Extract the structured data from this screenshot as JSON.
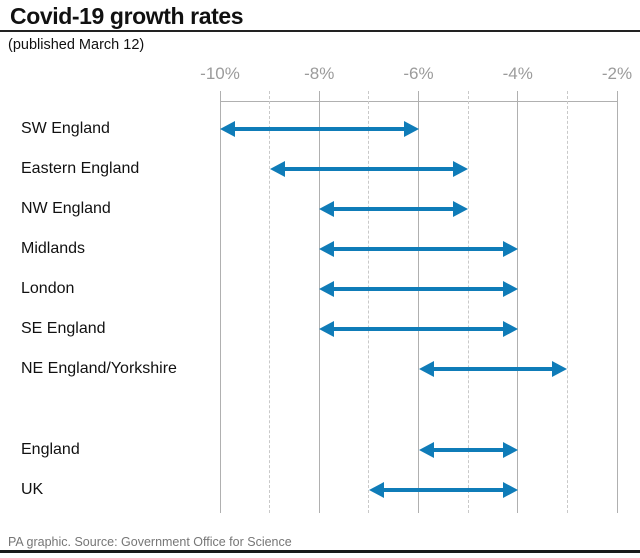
{
  "header": {
    "title": "Covid-19 growth rates",
    "subtitle": "(published March 12)"
  },
  "footer": {
    "text": "PA graphic. Source: Government Office for Science"
  },
  "colors": {
    "arrow": "#0f7cb8",
    "grid_solid": "#b0b0b0",
    "grid_dashed": "#c9c9c9",
    "axis_label": "#9b9b9b",
    "title_rule": "#222222",
    "footer_text": "#767676",
    "bottom_bar": "#1a1a1a"
  },
  "chart_data": {
    "type": "bar",
    "subtype": "horizontal-range-arrows",
    "title": "Covid-19 growth rates",
    "subtitle": "(published March 12)",
    "xlabel": "",
    "ylabel": "",
    "x_axis": {
      "min": -10,
      "max": -2,
      "unit": "%",
      "major_ticks": [
        -10,
        -8,
        -6,
        -4,
        -2
      ],
      "major_tick_labels": [
        "-10%",
        "-8%",
        "-6%",
        "-4%",
        "-2%"
      ],
      "minor_ticks": [
        -9,
        -7,
        -5,
        -3
      ],
      "grid": true
    },
    "categories": [
      "SW England",
      "Eastern England",
      "NW England",
      "Midlands",
      "London",
      "SE England",
      "NE England/Yorkshire",
      "England",
      "UK"
    ],
    "series": [
      {
        "name": "growth-rate-range",
        "ranges": [
          [
            -10,
            -6
          ],
          [
            -9,
            -5
          ],
          [
            -8,
            -5
          ],
          [
            -8,
            -4
          ],
          [
            -8,
            -4
          ],
          [
            -8,
            -4
          ],
          [
            -6,
            -3
          ],
          [
            -6,
            -4
          ],
          [
            -7,
            -4
          ]
        ]
      }
    ],
    "gap_after_category": "NE England/Yorkshire",
    "legend": null,
    "source": "Government Office for Science"
  }
}
